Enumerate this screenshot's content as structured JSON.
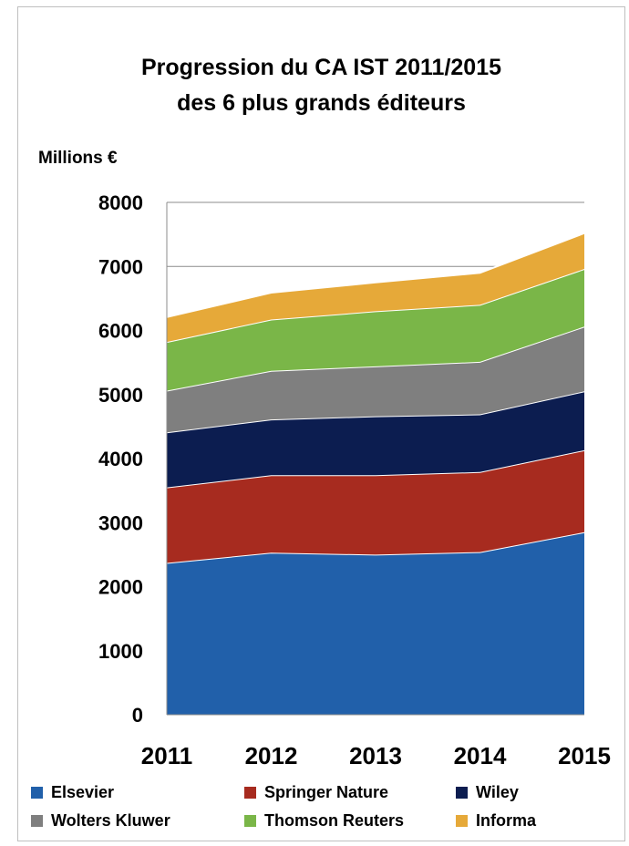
{
  "chart_data": {
    "type": "area",
    "stacked": true,
    "title": "Progression du CA IST 2011/2015",
    "subtitle": "des 6 plus grands éditeurs",
    "ylabel": "Millions €",
    "xlabel": "",
    "ylim": [
      0,
      8000
    ],
    "yticks": [
      0,
      1000,
      2000,
      3000,
      4000,
      5000,
      6000,
      7000,
      8000
    ],
    "categories": [
      "2011",
      "2012",
      "2013",
      "2014",
      "2015"
    ],
    "grid": true,
    "legend_position": "bottom",
    "series": [
      {
        "name": "Elsevier",
        "color": "#2160aa",
        "values": [
          2370,
          2530,
          2500,
          2540,
          2850
        ]
      },
      {
        "name": "Springer Nature",
        "color": "#a72b1f",
        "values": [
          1180,
          1210,
          1240,
          1250,
          1280
        ]
      },
      {
        "name": "Wiley",
        "color": "#0c1d50",
        "values": [
          860,
          870,
          920,
          900,
          920
        ]
      },
      {
        "name": "Wolters Kluwer",
        "color": "#7f7f7f",
        "values": [
          650,
          760,
          780,
          820,
          1010
        ]
      },
      {
        "name": "Thomson Reuters",
        "color": "#7ab648",
        "values": [
          760,
          800,
          860,
          890,
          900
        ]
      },
      {
        "name": "Informa",
        "color": "#e6a939",
        "values": [
          390,
          420,
          450,
          500,
          560
        ]
      }
    ]
  }
}
